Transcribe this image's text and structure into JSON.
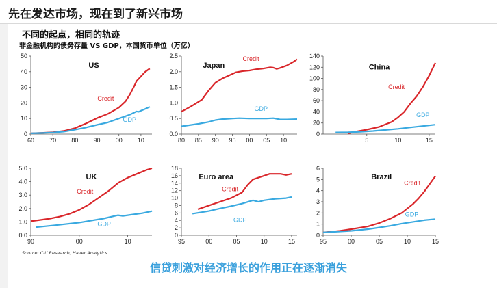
{
  "header": {
    "title": "先在发达市场，现在到了新兴市场",
    "subtitle": "不同的起点，相同的轨迹",
    "note": "非金融机构的债务存量 VS GDP，本国货币单位（万亿）"
  },
  "footer": {
    "source": "Source: Citi Research, Haver Analytics.",
    "caption": "信贷刺激对经济增长的作用正在逐渐消失"
  },
  "colors": {
    "credit": "#d9262a",
    "gdp": "#39a9e0",
    "axis": "#555555"
  },
  "chart_data": [
    {
      "type": "line",
      "title": "US",
      "xticks": [
        [
          "60",
          1960
        ],
        [
          "70",
          1970
        ],
        [
          "80",
          1980
        ],
        [
          "90",
          1990
        ],
        [
          "00",
          2000
        ],
        [
          "10",
          2010
        ]
      ],
      "xlim": [
        1960,
        2015
      ],
      "ylim": [
        0,
        50
      ],
      "yticks": [
        "0",
        "10",
        "20",
        "30",
        "40",
        "50"
      ],
      "series": [
        {
          "name": "Credit",
          "points": [
            [
              1960,
              0.5
            ],
            [
              1965,
              0.8
            ],
            [
              1970,
              1.2
            ],
            [
              1975,
              2.0
            ],
            [
              1980,
              3.8
            ],
            [
              1985,
              6.8
            ],
            [
              1990,
              10.2
            ],
            [
              1995,
              13.0
            ],
            [
              2000,
              17.0
            ],
            [
              2003,
              21.0
            ],
            [
              2005,
              25.5
            ],
            [
              2007,
              31.0
            ],
            [
              2008,
              34.0
            ],
            [
              2010,
              37.0
            ],
            [
              2012,
              40.0
            ],
            [
              2014,
              42.0
            ]
          ]
        },
        {
          "name": "GDP",
          "points": [
            [
              1960,
              0.5
            ],
            [
              1965,
              0.7
            ],
            [
              1970,
              1.0
            ],
            [
              1975,
              1.6
            ],
            [
              1980,
              2.8
            ],
            [
              1985,
              4.2
            ],
            [
              1990,
              5.9
            ],
            [
              1995,
              7.5
            ],
            [
              2000,
              10.0
            ],
            [
              2005,
              12.5
            ],
            [
              2008,
              14.5
            ],
            [
              2009,
              14.3
            ],
            [
              2010,
              15.0
            ],
            [
              2012,
              16.2
            ],
            [
              2014,
              17.5
            ]
          ]
        }
      ]
    },
    {
      "type": "line",
      "title": "Japan",
      "xticks": [
        [
          "80",
          1980
        ],
        [
          "85",
          1985
        ],
        [
          "90",
          1990
        ],
        [
          "95",
          1995
        ],
        [
          "00",
          2000
        ],
        [
          "05",
          2005
        ],
        [
          "10",
          2010
        ]
      ],
      "xlim": [
        1980,
        2014
      ],
      "ylim": [
        0,
        2.5
      ],
      "yticks": [
        "0.0",
        "0.5",
        "1.0",
        "1.5",
        "2.0",
        "2.5"
      ],
      "series": [
        {
          "name": "Credit",
          "points": [
            [
              1980,
              0.72
            ],
            [
              1983,
              0.9
            ],
            [
              1986,
              1.1
            ],
            [
              1988,
              1.4
            ],
            [
              1990,
              1.65
            ],
            [
              1992,
              1.78
            ],
            [
              1994,
              1.88
            ],
            [
              1996,
              1.98
            ],
            [
              1998,
              2.02
            ],
            [
              2000,
              2.04
            ],
            [
              2002,
              2.08
            ],
            [
              2004,
              2.1
            ],
            [
              2006,
              2.14
            ],
            [
              2007,
              2.13
            ],
            [
              2008,
              2.09
            ],
            [
              2009,
              2.12
            ],
            [
              2011,
              2.2
            ],
            [
              2013,
              2.32
            ],
            [
              2014,
              2.4
            ]
          ]
        },
        {
          "name": "GDP",
          "points": [
            [
              1980,
              0.25
            ],
            [
              1985,
              0.33
            ],
            [
              1988,
              0.39
            ],
            [
              1990,
              0.45
            ],
            [
              1992,
              0.48
            ],
            [
              1995,
              0.5
            ],
            [
              1997,
              0.51
            ],
            [
              2000,
              0.5
            ],
            [
              2005,
              0.5
            ],
            [
              2007,
              0.51
            ],
            [
              2009,
              0.47
            ],
            [
              2011,
              0.47
            ],
            [
              2014,
              0.48
            ]
          ]
        }
      ]
    },
    {
      "type": "line",
      "title": "China",
      "xticks": [
        [
          "5",
          2005
        ],
        [
          "10",
          2010
        ],
        [
          "15",
          2015
        ]
      ],
      "xlim": [
        1998,
        2016
      ],
      "ylim": [
        0,
        140
      ],
      "yticks": [
        "0",
        "20",
        "40",
        "60",
        "80",
        "100",
        "120",
        "140"
      ],
      "series": [
        {
          "name": "Credit",
          "points": [
            [
              2002,
              1.0
            ],
            [
              2003,
              4.0
            ],
            [
              2005,
              8.0
            ],
            [
              2007,
              13.0
            ],
            [
              2009,
              22.0
            ],
            [
              2010,
              30.0
            ],
            [
              2011,
              40.0
            ],
            [
              2012,
              55.0
            ],
            [
              2013,
              68.0
            ],
            [
              2014,
              85.0
            ],
            [
              2015,
              105.0
            ],
            [
              2016,
              128.0
            ]
          ]
        },
        {
          "name": "GDP",
          "points": [
            [
              2000,
              3.0
            ],
            [
              2002,
              3.2
            ],
            [
              2004,
              4.2
            ],
            [
              2006,
              5.5
            ],
            [
              2008,
              7.5
            ],
            [
              2010,
              9.5
            ],
            [
              2012,
              12.0
            ],
            [
              2014,
              14.5
            ],
            [
              2016,
              17.0
            ]
          ]
        }
      ]
    },
    {
      "type": "line",
      "title": "UK",
      "xticks": [
        [
          "90",
          1990
        ],
        [
          "00",
          2000
        ],
        [
          "10",
          2010
        ]
      ],
      "xlim": [
        1990,
        2015
      ],
      "ylim": [
        0,
        5.0
      ],
      "yticks": [
        "0.0",
        "1.0",
        "2.0",
        "3.0",
        "4.0",
        "5.0"
      ],
      "series": [
        {
          "name": "Credit",
          "points": [
            [
              1990,
              1.05
            ],
            [
              1992,
              1.15
            ],
            [
              1994,
              1.25
            ],
            [
              1996,
              1.4
            ],
            [
              1998,
              1.6
            ],
            [
              2000,
              1.9
            ],
            [
              2002,
              2.3
            ],
            [
              2004,
              2.8
            ],
            [
              2006,
              3.3
            ],
            [
              2008,
              3.9
            ],
            [
              2009,
              4.1
            ],
            [
              2010,
              4.3
            ],
            [
              2012,
              4.6
            ],
            [
              2014,
              4.9
            ],
            [
              2015,
              5.0
            ]
          ]
        },
        {
          "name": "GDP",
          "points": [
            [
              1991,
              0.6
            ],
            [
              1995,
              0.75
            ],
            [
              2000,
              0.95
            ],
            [
              2005,
              1.25
            ],
            [
              2008,
              1.5
            ],
            [
              2009,
              1.45
            ],
            [
              2011,
              1.55
            ],
            [
              2013,
              1.65
            ],
            [
              2015,
              1.8
            ]
          ]
        }
      ]
    },
    {
      "type": "line",
      "title": "Euro area",
      "xticks": [
        [
          "95",
          1995
        ],
        [
          "00",
          2000
        ],
        [
          "05",
          2005
        ],
        [
          "10",
          2010
        ],
        [
          "15",
          2015
        ]
      ],
      "xlim": [
        1995,
        2016
      ],
      "ylim": [
        0,
        18
      ],
      "yticks": [
        "0",
        "2",
        "4",
        "6",
        "8",
        "10",
        "12",
        "14",
        "16",
        "18"
      ],
      "series": [
        {
          "name": "Credit",
          "points": [
            [
              1998,
              7.0
            ],
            [
              2000,
              8.0
            ],
            [
              2002,
              9.0
            ],
            [
              2004,
              10.0
            ],
            [
              2006,
              11.5
            ],
            [
              2007,
              13.5
            ],
            [
              2008,
              15.0
            ],
            [
              2009,
              15.5
            ],
            [
              2010,
              16.0
            ],
            [
              2011,
              16.5
            ],
            [
              2013,
              16.5
            ],
            [
              2014,
              16.2
            ],
            [
              2015,
              16.5
            ]
          ]
        },
        {
          "name": "GDP",
          "points": [
            [
              1997,
              5.8
            ],
            [
              2000,
              6.5
            ],
            [
              2002,
              7.2
            ],
            [
              2004,
              7.8
            ],
            [
              2006,
              8.5
            ],
            [
              2008,
              9.4
            ],
            [
              2009,
              9.0
            ],
            [
              2010,
              9.4
            ],
            [
              2012,
              9.8
            ],
            [
              2014,
              10.0
            ],
            [
              2015,
              10.3
            ]
          ]
        }
      ]
    },
    {
      "type": "line",
      "title": "Brazil",
      "xticks": [
        [
          "95",
          1995
        ],
        [
          "00",
          2000
        ],
        [
          "05",
          2005
        ],
        [
          "10",
          2010
        ],
        [
          "15",
          2015
        ]
      ],
      "xlim": [
        1995,
        2015
      ],
      "ylim": [
        0,
        6
      ],
      "yticks": [
        "0",
        "1",
        "2",
        "3",
        "4",
        "5",
        "6"
      ],
      "series": [
        {
          "name": "Credit",
          "points": [
            [
              1995,
              0.25
            ],
            [
              1998,
              0.4
            ],
            [
              2000,
              0.55
            ],
            [
              2003,
              0.8
            ],
            [
              2005,
              1.1
            ],
            [
              2007,
              1.5
            ],
            [
              2009,
              2.0
            ],
            [
              2010,
              2.4
            ],
            [
              2011,
              2.8
            ],
            [
              2012,
              3.3
            ],
            [
              2013,
              3.9
            ],
            [
              2014,
              4.6
            ],
            [
              2015,
              5.3
            ]
          ]
        },
        {
          "name": "GDP",
          "points": [
            [
              1995,
              0.25
            ],
            [
              2000,
              0.4
            ],
            [
              2003,
              0.55
            ],
            [
              2005,
              0.7
            ],
            [
              2007,
              0.85
            ],
            [
              2009,
              1.05
            ],
            [
              2011,
              1.2
            ],
            [
              2013,
              1.35
            ],
            [
              2015,
              1.45
            ]
          ]
        }
      ]
    }
  ]
}
